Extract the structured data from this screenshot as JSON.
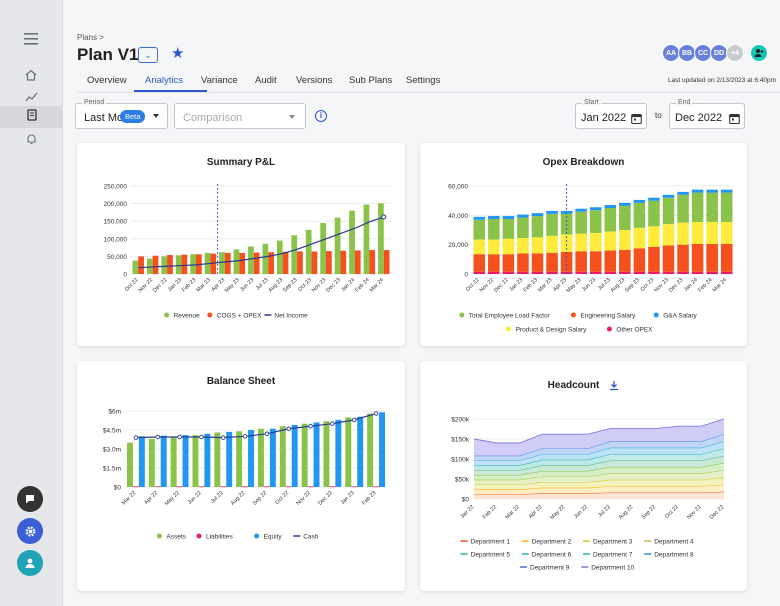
{
  "breadcrumb": "Plans >",
  "plan_title": "Plan V1",
  "collaborators": [
    {
      "initials": "AA",
      "color": "#6a7fdb"
    },
    {
      "initials": "BB",
      "color": "#6a7fdb"
    },
    {
      "initials": "CC",
      "color": "#6a7fdb"
    },
    {
      "initials": "DD",
      "color": "#6a7fdb"
    },
    {
      "initials": "+4",
      "color": "#c9cbd0"
    }
  ],
  "tabs": [
    "Overview",
    "Analytics",
    "Variance",
    "Audit",
    "Versions",
    "Sub Plans",
    "Settings"
  ],
  "last_updated": "Last updated on 2/13/2023 at 6:40pm",
  "period": {
    "label": "Period",
    "value": "Last Mo",
    "badge": "Beta"
  },
  "comparison": {
    "placeholder": "Comparison"
  },
  "start": {
    "label": "Start",
    "value": "Jan 2022"
  },
  "to_label": "to",
  "end": {
    "label": "End",
    "value": "Dec 2022"
  },
  "colors": {
    "accent": "#2d56c9",
    "green": "#8bc34a",
    "orange": "#f4511e",
    "navy": "#2a3a8c",
    "blue": "#2196f3",
    "yellow": "#ffeb3b",
    "pink": "#e91e63"
  },
  "icons": {
    "menu": "menu-icon",
    "home": "home-icon",
    "analytics": "analytics-icon",
    "document": "document-icon",
    "bell": "bell-icon",
    "chat": "chat-icon",
    "settings": "gear-icon",
    "user": "user-icon",
    "download": "download-icon",
    "info": "info-icon",
    "calendar": "calendar-icon"
  },
  "chart_data": [
    {
      "title": "Summary P&L",
      "type": "bar+line",
      "categories": [
        "Oct 22",
        "Nov 22",
        "Dec 22",
        "Jan 23",
        "Feb 23",
        "Mar 23",
        "Apr 23",
        "May 23",
        "Jun 23",
        "Jul 23",
        "Aug 23",
        "Sep 23",
        "Oct 23",
        "Nov 23",
        "Dec 23",
        "Jan 24",
        "Feb 24",
        "Mar 24"
      ],
      "ylim": [
        0,
        250000
      ],
      "yticks": [
        "250,000",
        "200,000",
        "150,000",
        "100,000",
        "50,000",
        "0"
      ],
      "series": [
        {
          "name": "Revenue",
          "type": "bar",
          "values": [
            38000,
            44000,
            50000,
            53000,
            56000,
            60000,
            62000,
            70000,
            78000,
            86000,
            95000,
            110000,
            125000,
            145000,
            160000,
            180000,
            197000,
            201000
          ]
        },
        {
          "name": "COGS + OPEX",
          "type": "bar",
          "values": [
            50000,
            52000,
            54000,
            55000,
            56000,
            58000,
            60000,
            60000,
            61000,
            62000,
            63000,
            64000,
            64000,
            65000,
            66000,
            67000,
            68000,
            68000
          ]
        },
        {
          "name": "Net Income",
          "type": "line",
          "values": [
            18000,
            20000,
            22000,
            24000,
            26000,
            30000,
            34000,
            38000,
            44000,
            50000,
            58000,
            70000,
            85000,
            100000,
            115000,
            130000,
            148000,
            162000
          ]
        }
      ]
    },
    {
      "title": "Opex Breakdown",
      "type": "stacked-bar",
      "categories": [
        "Oct 22",
        "Nov 22",
        "Dec 22",
        "Jan 23",
        "Feb 23",
        "Mar 23",
        "Apr 23",
        "May 23",
        "Jun 23",
        "Jul 23",
        "Aug 23",
        "Sep 23",
        "Oct 23",
        "Nov 23",
        "Dec 23",
        "Jan 24",
        "Feb 24",
        "Mar 24"
      ],
      "ylim": [
        0,
        60000
      ],
      "yticks": [
        "60,000",
        "40,000",
        "20,000",
        "0"
      ],
      "series": [
        {
          "name": "Other OPEX",
          "values": [
            1500,
            1500,
            1500,
            1500,
            1500,
            1500,
            1500,
            1500,
            1500,
            1500,
            1500,
            1500,
            1500,
            1500,
            1500,
            1500,
            1500,
            1500
          ]
        },
        {
          "name": "Engineering Salary",
          "values": [
            12000,
            12000,
            12000,
            12500,
            12500,
            13000,
            13500,
            14000,
            14000,
            14500,
            15000,
            16000,
            17000,
            18000,
            18500,
            19000,
            19000,
            19000
          ]
        },
        {
          "name": "Product & Design Salary",
          "values": [
            10000,
            10000,
            10500,
            10500,
            11000,
            11500,
            12000,
            12000,
            12500,
            13000,
            13500,
            14000,
            14000,
            14500,
            15000,
            15000,
            15000,
            15000
          ]
        },
        {
          "name": "Total Employee Load Factor",
          "values": [
            13500,
            14000,
            13500,
            14000,
            14500,
            15000,
            14000,
            15000,
            15500,
            16000,
            16500,
            17000,
            17500,
            18000,
            19000,
            20000,
            20000,
            20000
          ]
        },
        {
          "name": "G&A Salary",
          "values": [
            2000,
            2000,
            2000,
            2000,
            2000,
            2000,
            2000,
            2000,
            2000,
            2000,
            2000,
            2000,
            2000,
            2000,
            2000,
            2000,
            2000,
            2000
          ]
        }
      ]
    },
    {
      "title": "Balance Sheet",
      "type": "bar+line",
      "categories": [
        "Mar 22",
        "Apr 22",
        "May 22",
        "Jun 22",
        "Jul 22",
        "Aug 22",
        "Sep 22",
        "Oct 22",
        "Nov 22",
        "Dec 22",
        "Jan 23",
        "Feb 23"
      ],
      "ylim": [
        0,
        6000000
      ],
      "yticks": [
        "$6m",
        "$4.5m",
        "$3.0m",
        "$1.5m",
        "$0"
      ],
      "series": [
        {
          "name": "Assets",
          "type": "bar",
          "values": [
            3500000,
            3800000,
            3900000,
            4100000,
            4300000,
            4400000,
            4600000,
            4800000,
            5000000,
            5200000,
            5500000,
            5800000
          ]
        },
        {
          "name": "Liabilities",
          "type": "bar",
          "values": [
            50000,
            50000,
            50000,
            50000,
            50000,
            50000,
            50000,
            50000,
            50000,
            50000,
            50000,
            50000
          ]
        },
        {
          "name": "Equity",
          "type": "bar",
          "values": [
            4000000,
            4050000,
            4100000,
            4200000,
            4350000,
            4500000,
            4600000,
            4900000,
            5100000,
            5300000,
            5550000,
            5900000
          ]
        },
        {
          "name": "Cash",
          "type": "line",
          "values": [
            3900000,
            3950000,
            3950000,
            3950000,
            3900000,
            4000000,
            4200000,
            4600000,
            4800000,
            5000000,
            5300000,
            5800000
          ]
        }
      ]
    },
    {
      "title": "Headcount",
      "type": "area",
      "categories": [
        "Jan 22",
        "Feb 22",
        "Mar 22",
        "Apr 22",
        "May 22",
        "Jun 22",
        "Jul 22",
        "Aug 22",
        "Sep 22",
        "Oct 22",
        "Nov 22",
        "Dec 22"
      ],
      "ylim": [
        0,
        200000
      ],
      "yticks": [
        "$200k",
        "$150k",
        "$100k",
        "$50k",
        "$0"
      ],
      "series": [
        {
          "name": "Department 1",
          "values": [
            12000,
            12000,
            12000,
            14000,
            14000,
            14000,
            16000,
            16000,
            16000,
            16000,
            16000,
            18000
          ]
        },
        {
          "name": "Department 2",
          "values": [
            12000,
            12000,
            12000,
            14000,
            14000,
            14000,
            16000,
            16000,
            16000,
            16000,
            16000,
            18000
          ]
        },
        {
          "name": "Department 3",
          "values": [
            12000,
            12000,
            12000,
            14000,
            14000,
            14000,
            16000,
            16000,
            16000,
            16000,
            16000,
            18000
          ]
        },
        {
          "name": "Department 4",
          "values": [
            12000,
            12000,
            12000,
            14000,
            14000,
            14000,
            16000,
            16000,
            16000,
            16000,
            16000,
            18000
          ]
        },
        {
          "name": "Department 5",
          "values": [
            12000,
            12000,
            12000,
            14000,
            14000,
            14000,
            16000,
            16000,
            16000,
            16000,
            16000,
            18000
          ]
        },
        {
          "name": "Department 6",
          "values": [
            12000,
            12000,
            12000,
            14000,
            14000,
            14000,
            16000,
            16000,
            16000,
            16000,
            16000,
            18000
          ]
        },
        {
          "name": "Department 7",
          "values": [
            12000,
            12000,
            12000,
            14000,
            14000,
            14000,
            16000,
            16000,
            16000,
            16000,
            16000,
            18000
          ]
        },
        {
          "name": "Department 8",
          "values": [
            12000,
            12000,
            12000,
            14000,
            14000,
            14000,
            16000,
            16000,
            16000,
            16000,
            16000,
            18000
          ]
        },
        {
          "name": "Department 9",
          "values": [
            12000,
            12000,
            12000,
            14000,
            14000,
            14000,
            16000,
            16000,
            16000,
            16000,
            16000,
            18000
          ]
        },
        {
          "name": "Department 10",
          "values": [
            42000,
            32000,
            32000,
            36000,
            36000,
            36000,
            32000,
            32000,
            32000,
            38000,
            38000,
            38000
          ]
        }
      ]
    }
  ]
}
